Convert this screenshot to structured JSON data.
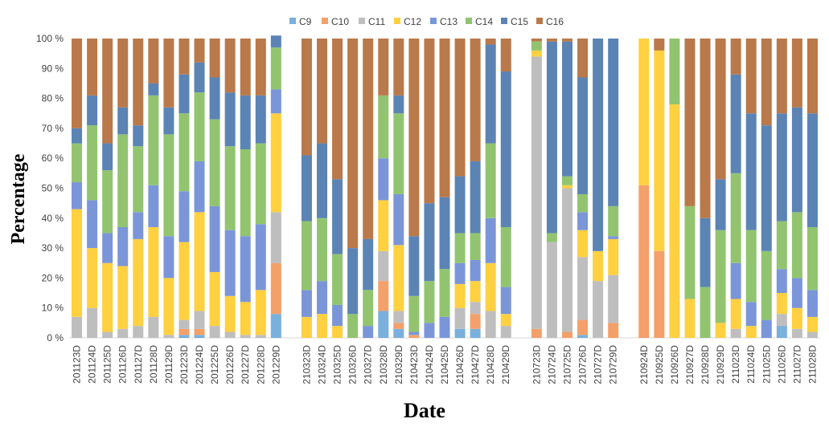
{
  "chart_data": {
    "type": "bar",
    "stacked": true,
    "xlabel": "Date",
    "ylabel": "Percentage",
    "ylim": [
      0,
      100
    ],
    "y_ticks": [
      "0 %",
      "10 %",
      "20 %",
      "30 %",
      "40 %",
      "50 %",
      "60 %",
      "70 %",
      "80 %",
      "90 %",
      "100 %"
    ],
    "legend_position": "top",
    "grid": false,
    "categories": [
      "201123D",
      "201124D",
      "201125D",
      "201126D",
      "201127D",
      "201128D",
      "201129D",
      "201223D",
      "201224D",
      "201225D",
      "201226D",
      "201227D",
      "201228D",
      "201229D",
      "",
      "210323D",
      "210324D",
      "210325D",
      "210326D",
      "210327D",
      "210328D",
      "210329D",
      "210423D",
      "210424D",
      "210425D",
      "210426D",
      "210427D",
      "210428D",
      "210429D",
      "",
      "210723D",
      "210724D",
      "210725D",
      "210726D",
      "210727D",
      "210729D",
      "",
      "210924D",
      "210925D",
      "210926D",
      "210927D",
      "210928D",
      "210929D",
      "211023D",
      "211024D",
      "211025D",
      "211026D",
      "211027D",
      "211028D"
    ],
    "series": [
      {
        "name": "C9",
        "color": "#7ab0dc",
        "values": [
          0,
          0,
          0,
          0,
          0,
          0,
          0,
          1,
          1,
          0,
          0,
          0,
          0,
          8,
          0,
          0,
          0,
          0,
          0,
          0,
          9,
          3,
          0,
          0,
          0,
          3,
          3,
          0,
          0,
          0,
          0,
          0,
          0,
          1,
          0,
          0,
          0,
          0,
          0,
          0,
          0,
          0,
          0,
          0,
          0,
          0,
          4,
          0,
          0
        ]
      },
      {
        "name": "C10",
        "color": "#f4a06a",
        "values": [
          0,
          0,
          0,
          0,
          0,
          0,
          0,
          2,
          2,
          0,
          0,
          0,
          0,
          17,
          0,
          0,
          0,
          0,
          0,
          0,
          10,
          2,
          1,
          0,
          0,
          0,
          5,
          0,
          0,
          0,
          3,
          0,
          2,
          5,
          0,
          5,
          0,
          51,
          29,
          0,
          0,
          0,
          0,
          0,
          0,
          0,
          0,
          0,
          0
        ]
      },
      {
        "name": "C11",
        "color": "#bebebe",
        "values": [
          7,
          10,
          2,
          3,
          4,
          7,
          1,
          3,
          6,
          4,
          2,
          1,
          1,
          17,
          0,
          0,
          0,
          0,
          0,
          0,
          10,
          4,
          0,
          0,
          0,
          7,
          4,
          9,
          4,
          0,
          91,
          32,
          48,
          21,
          19,
          16,
          0,
          0,
          0,
          0,
          0,
          0,
          0,
          3,
          0,
          0,
          4,
          3,
          2
        ]
      },
      {
        "name": "C12",
        "color": "#ffd040",
        "values": [
          36,
          20,
          23,
          21,
          29,
          30,
          19,
          26,
          33,
          18,
          12,
          11,
          15,
          33,
          0,
          7,
          8,
          4,
          0,
          0,
          17,
          22,
          0,
          0,
          0,
          8,
          7,
          16,
          4,
          0,
          2,
          0,
          1,
          9,
          10,
          12,
          0,
          49,
          67,
          78,
          13,
          0,
          5,
          10,
          4,
          0,
          7,
          7,
          5
        ]
      },
      {
        "name": "C13",
        "color": "#7b96d8",
        "values": [
          9,
          16,
          10,
          13,
          9,
          14,
          14,
          17,
          17,
          22,
          22,
          22,
          22,
          8,
          0,
          9,
          11,
          7,
          0,
          4,
          14,
          17,
          1,
          5,
          7,
          7,
          7,
          15,
          9,
          0,
          0,
          0,
          0,
          6,
          0,
          1,
          0,
          0,
          0,
          0,
          0,
          0,
          0,
          12,
          8,
          6,
          8,
          10,
          9
        ]
      },
      {
        "name": "C14",
        "color": "#92c470",
        "values": [
          13,
          25,
          21,
          31,
          22,
          30,
          34,
          26,
          23,
          29,
          28,
          29,
          27,
          14,
          0,
          23,
          21,
          17,
          8,
          12,
          21,
          27,
          12,
          14,
          16,
          10,
          9,
          25,
          20,
          0,
          3,
          3,
          3,
          6,
          0,
          10,
          0,
          0,
          0,
          22,
          31,
          17,
          31,
          30,
          24,
          23,
          16,
          22,
          21
        ]
      },
      {
        "name": "C15",
        "color": "#5b84b4",
        "values": [
          5,
          10,
          9,
          9,
          7,
          4,
          9,
          13,
          10,
          14,
          18,
          18,
          16,
          4,
          0,
          22,
          25,
          25,
          22,
          17,
          0,
          6,
          20,
          26,
          24,
          19,
          24,
          33,
          52,
          0,
          0,
          64,
          45,
          39,
          71,
          56,
          0,
          0,
          0,
          0,
          0,
          23,
          17,
          33,
          39,
          42,
          36,
          35,
          38
        ]
      },
      {
        "name": "C16",
        "color": "#b9794a",
        "values": [
          30,
          19,
          35,
          23,
          29,
          15,
          23,
          12,
          8,
          13,
          18,
          19,
          19,
          0,
          0,
          39,
          35,
          47,
          70,
          67,
          19,
          19,
          66,
          55,
          53,
          46,
          41,
          2,
          11,
          0,
          1,
          1,
          1,
          13,
          0,
          0,
          0,
          0,
          4,
          0,
          56,
          60,
          47,
          12,
          25,
          29,
          25,
          23,
          25
        ]
      }
    ]
  }
}
